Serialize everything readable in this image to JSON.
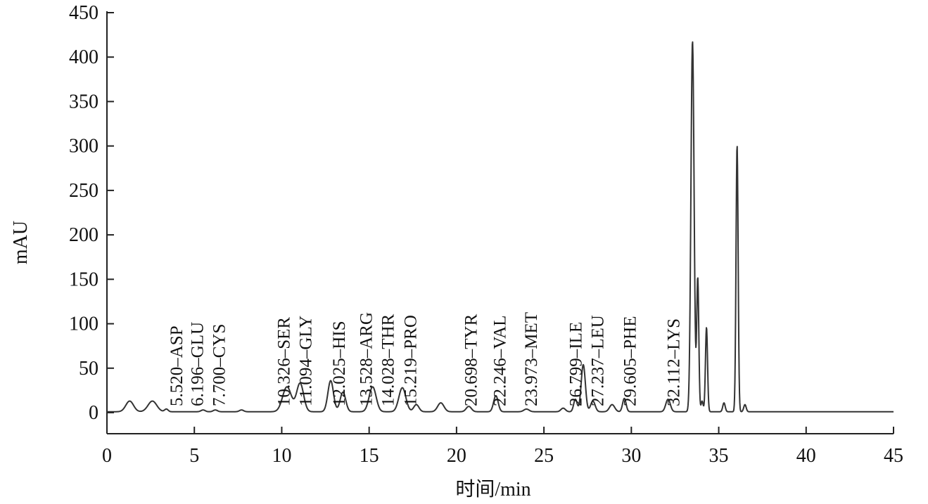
{
  "chart_data": {
    "type": "line",
    "xlabel": "时间/min",
    "ylabel": "mAU",
    "xlim": [
      0,
      45
    ],
    "ylim": [
      0,
      450
    ],
    "x_ticks": [
      0,
      5,
      10,
      15,
      20,
      25,
      30,
      35,
      40,
      45
    ],
    "y_ticks": [
      0,
      50,
      100,
      150,
      200,
      250,
      300,
      350,
      400,
      450
    ],
    "grid": false,
    "baseline": 1,
    "peaks": [
      {
        "x": 1.3,
        "y": 12,
        "w": 0.22
      },
      {
        "x": 2.6,
        "y": 12,
        "w": 0.25
      },
      {
        "x": 3.4,
        "y": 3,
        "w": 0.1
      },
      {
        "x": 5.5,
        "y": 2,
        "w": 0.12
      },
      {
        "x": 6.2,
        "y": 2,
        "w": 0.12
      },
      {
        "x": 7.7,
        "y": 2,
        "w": 0.12
      },
      {
        "x": 10.3,
        "y": 28,
        "w": 0.25
      },
      {
        "x": 11.05,
        "y": 32,
        "w": 0.2
      },
      {
        "x": 12.8,
        "y": 35,
        "w": 0.16
      },
      {
        "x": 13.5,
        "y": 22,
        "w": 0.16
      },
      {
        "x": 15.2,
        "y": 28,
        "w": 0.2
      },
      {
        "x": 16.9,
        "y": 27,
        "w": 0.2
      },
      {
        "x": 17.7,
        "y": 8,
        "w": 0.15
      },
      {
        "x": 19.1,
        "y": 10,
        "w": 0.18
      },
      {
        "x": 20.7,
        "y": 6,
        "w": 0.15
      },
      {
        "x": 22.25,
        "y": 18,
        "w": 0.13
      },
      {
        "x": 24.0,
        "y": 3,
        "w": 0.15
      },
      {
        "x": 26.1,
        "y": 4,
        "w": 0.13
      },
      {
        "x": 26.8,
        "y": 14,
        "w": 0.1
      },
      {
        "x": 27.25,
        "y": 53,
        "w": 0.12
      },
      {
        "x": 27.8,
        "y": 12,
        "w": 0.13
      },
      {
        "x": 28.9,
        "y": 8,
        "w": 0.15
      },
      {
        "x": 29.6,
        "y": 15,
        "w": 0.1
      },
      {
        "x": 32.1,
        "y": 14,
        "w": 0.13
      },
      {
        "x": 33.5,
        "y": 417,
        "w": 0.09
      },
      {
        "x": 33.8,
        "y": 150,
        "w": 0.06
      },
      {
        "x": 34.05,
        "y": 12,
        "w": 0.06
      },
      {
        "x": 34.3,
        "y": 95,
        "w": 0.06
      },
      {
        "x": 35.3,
        "y": 10,
        "w": 0.07
      },
      {
        "x": 36.05,
        "y": 300,
        "w": 0.06
      },
      {
        "x": 36.5,
        "y": 8,
        "w": 0.07
      }
    ],
    "annotations": [
      {
        "x": 4.3,
        "text": "5.520–ASP"
      },
      {
        "x": 5.5,
        "text": "6.196–GLU"
      },
      {
        "x": 6.75,
        "text": "7.700–CYS"
      },
      {
        "x": 10.45,
        "text": "10.326–SER"
      },
      {
        "x": 11.7,
        "text": "11.094–GLY"
      },
      {
        "x": 13.6,
        "text": "12.025–HIS"
      },
      {
        "x": 15.15,
        "text": "13.528–ARG"
      },
      {
        "x": 16.4,
        "text": "14.028–THR"
      },
      {
        "x": 17.7,
        "text": "15.219–PRO"
      },
      {
        "x": 21.15,
        "text": "20.698–TYR"
      },
      {
        "x": 22.8,
        "text": "22.246–VAL"
      },
      {
        "x": 24.6,
        "text": "23.973–MET"
      },
      {
        "x": 27.15,
        "text": "26.799–ILE"
      },
      {
        "x": 28.4,
        "text": "27.237–LEU"
      },
      {
        "x": 30.25,
        "text": "29.605–PHE"
      },
      {
        "x": 32.75,
        "text": "32.112–LYS"
      }
    ]
  }
}
